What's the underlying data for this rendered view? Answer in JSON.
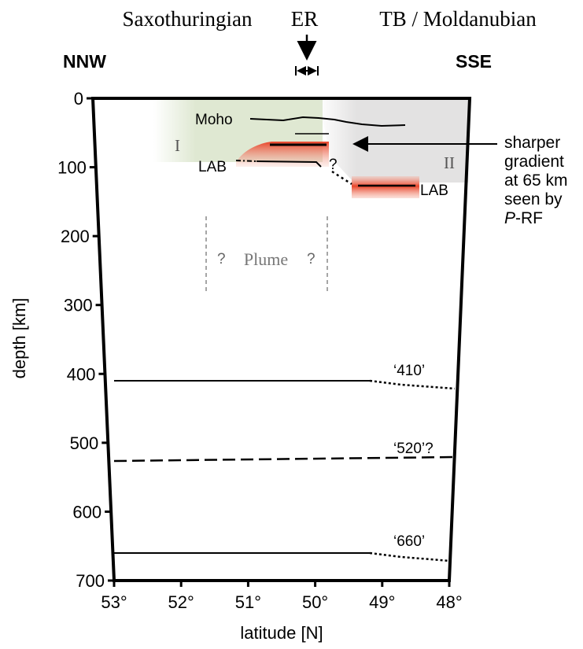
{
  "header": {
    "regions": [
      "Saxothuringian",
      "ER",
      "TB / Moldanubian"
    ],
    "left_direction": "NNW",
    "right_direction": "SSE"
  },
  "axes": {
    "y_label": "depth [km]",
    "y_ticks": [
      0,
      100,
      200,
      300,
      400,
      500,
      600,
      700
    ],
    "x_label": "latitude [N]",
    "x_ticks": [
      {
        "value": 53,
        "label": "53°"
      },
      {
        "value": 52,
        "label": "52°"
      },
      {
        "value": 51,
        "label": "51°"
      },
      {
        "value": 50,
        "label": "50°"
      },
      {
        "value": 49,
        "label": "49°"
      },
      {
        "value": 48,
        "label": "48°"
      }
    ]
  },
  "labels": {
    "moho": "Moho",
    "lab_left": "LAB",
    "lab_right": "LAB",
    "zone_1": "I",
    "zone_2": "II",
    "question_lab": "?",
    "plume_q_left": "?",
    "plume": "Plume",
    "plume_q_right": "?",
    "d410": "‘410’",
    "d520": "‘520’?",
    "d660": "‘660’"
  },
  "annotation": {
    "lines": [
      "sharper",
      "gradient",
      "at 65 km",
      "seen by"
    ],
    "italic": "P",
    "suffix": "-RF"
  }
}
